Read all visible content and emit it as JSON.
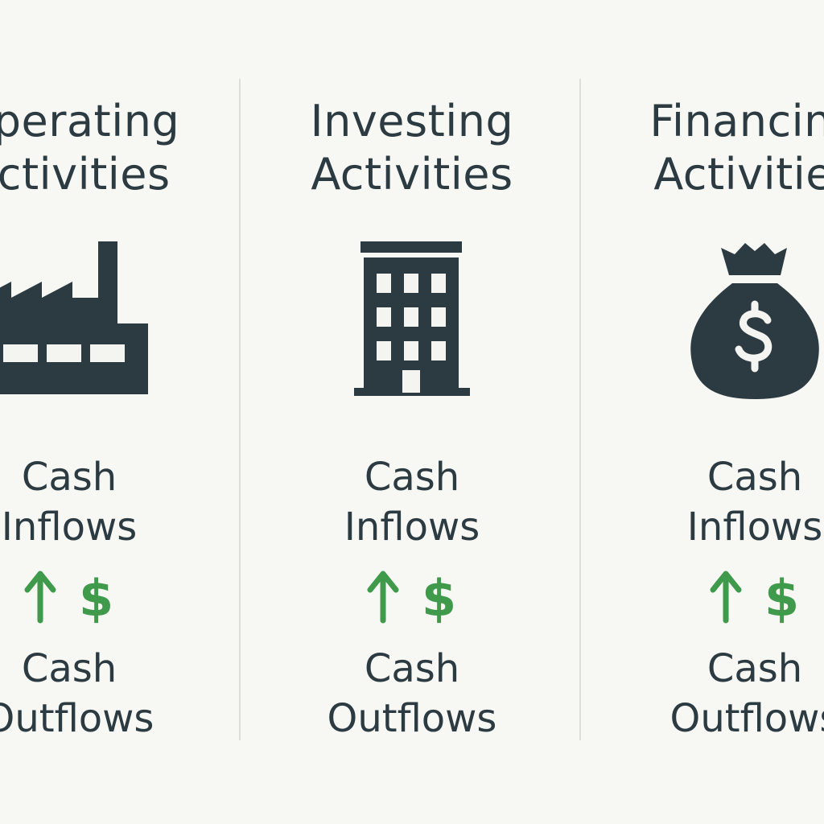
{
  "colors": {
    "background": "#f7f7f3",
    "ink": "#2c3b42",
    "accent_green": "#3f9a4b",
    "divider": "#dcdfd9"
  },
  "columns": [
    {
      "title_line1": "Operating",
      "title_line2": "Activities",
      "icon": "factory-icon",
      "inflows_line1": "Cash",
      "inflows_line2": "Inflows",
      "dollar": "$",
      "outflows_line1": "Cash",
      "outflows_line2": "Outflows"
    },
    {
      "title_line1": "Investing",
      "title_line2": "Activities",
      "icon": "office-building-icon",
      "inflows_line1": "Cash",
      "inflows_line2": "Inflows",
      "dollar": "$",
      "outflows_line1": "Cash",
      "outflows_line2": "Outflows"
    },
    {
      "title_line1": "Financing",
      "title_line2": "Activities",
      "icon": "money-bag-icon",
      "inflows_line1": "Cash",
      "inflows_line2": "Inflows",
      "dollar": "$",
      "outflows_line1": "Cash",
      "outflows_line2": "Outflows"
    }
  ]
}
